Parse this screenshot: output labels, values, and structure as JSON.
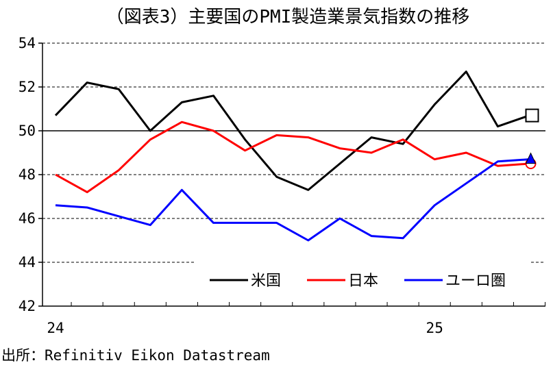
{
  "chart_data": {
    "type": "line",
    "title": "（図表3）主要国のPMI製造業景気指数の推移",
    "source": "出所：Refinitiv Eikon Datastream",
    "ylim": [
      42,
      54
    ],
    "yticks": [
      42,
      44,
      46,
      48,
      50,
      52,
      54
    ],
    "x": [
      "2024-01",
      "2024-02",
      "2024-03",
      "2024-04",
      "2024-05",
      "2024-06",
      "2024-07",
      "2024-08",
      "2024-09",
      "2024-10",
      "2024-11",
      "2024-12",
      "2025-01",
      "2025-02",
      "2025-03",
      "2025-04"
    ],
    "x_tick_labels": [
      {
        "label": "24",
        "month": "2024-01"
      },
      {
        "label": "25",
        "month": "2025-01"
      }
    ],
    "reference_line": 50,
    "series": [
      {
        "name": "米国",
        "color": "#000000",
        "marker": "square",
        "values": [
          50.7,
          52.2,
          51.9,
          50.0,
          51.3,
          51.6,
          49.6,
          47.9,
          47.3,
          48.5,
          49.7,
          49.4,
          51.2,
          52.7,
          50.2,
          50.7
        ]
      },
      {
        "name": "日本",
        "color": "#ff0000",
        "marker": "circle",
        "values": [
          48.0,
          47.2,
          48.2,
          49.6,
          50.4,
          50.0,
          49.1,
          49.8,
          49.7,
          49.2,
          49.0,
          49.6,
          48.7,
          49.0,
          48.4,
          48.5
        ]
      },
      {
        "name": "ユーロ圏",
        "color": "#0000ff",
        "marker": "triangle",
        "values": [
          46.6,
          46.5,
          46.1,
          45.7,
          47.3,
          45.8,
          45.8,
          45.8,
          45.0,
          46.0,
          45.2,
          45.1,
          46.6,
          47.6,
          48.6,
          48.7
        ]
      }
    ]
  }
}
